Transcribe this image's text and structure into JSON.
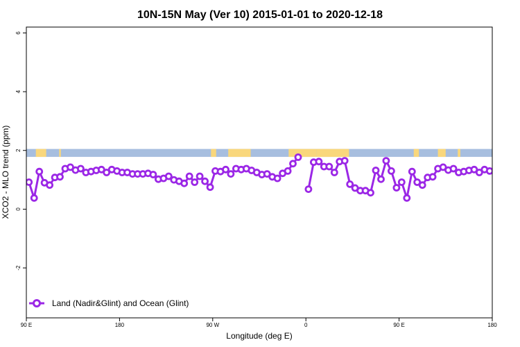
{
  "chart_data": {
    "type": "line",
    "title": "10N-15N May (Ver 10)   2015-01-01 to 2020-12-18",
    "xlabel": "Longitude (deg E)",
    "ylabel": "XCO2 - MLO trend (ppm)",
    "xlim": [
      -90,
      180
    ],
    "ylim": [
      -3.7,
      6.2
    ],
    "x_ticks": [
      {
        "value": -90,
        "label": "90 E"
      },
      {
        "value": -36,
        "label": "180"
      },
      {
        "value": 18,
        "label": "90 W"
      },
      {
        "value": 72,
        "label": "0"
      },
      {
        "value": 126,
        "label": "90 E"
      },
      {
        "value": 180,
        "label": "180"
      }
    ],
    "y_ticks": [
      {
        "value": -2,
        "label": "-2"
      },
      {
        "value": 0,
        "label": "0"
      },
      {
        "value": 2,
        "label": "2"
      },
      {
        "value": 4,
        "label": "4"
      },
      {
        "value": 6,
        "label": "6"
      }
    ],
    "legend": {
      "position": "bottom-left",
      "entries": [
        "Land (Nadir&Glint) and Ocean (Glint)"
      ]
    },
    "land_band": {
      "y_range": [
        1.78,
        2.05
      ],
      "ocean_color": "#a7bedf",
      "land_color": "#f9d77c"
    },
    "land_segments": [
      [
        -84.5,
        -78.5
      ],
      [
        -71,
        -70
      ],
      [
        17,
        20
      ],
      [
        27,
        40
      ],
      [
        62,
        78
      ],
      [
        78,
        97
      ],
      [
        134.5,
        137.5
      ],
      [
        148.5,
        153
      ],
      [
        160,
        161.5
      ]
    ],
    "series": [
      {
        "name": "Land (Nadir&Glint) and Ocean (Glint)",
        "color": "#9b27e6",
        "x": [
          -88.5,
          -85.5,
          -82.5,
          -79.5,
          -76.5,
          -73.5,
          -70.5,
          -67.5,
          -64.5,
          -61.5,
          -58.5,
          -55.5,
          -52.5,
          -49.5,
          -46.5,
          -43.5,
          -40.5,
          -37.5,
          -34.5,
          -31.5,
          -28.5,
          -25.5,
          -22.5,
          -19.5,
          -16.5,
          -13.5,
          -10.5,
          -7.5,
          -4.5,
          -1.5,
          1.5,
          4.5,
          7.5,
          10.5,
          13.5,
          16.5,
          19.5,
          22.5,
          25.5,
          28.5,
          31.5,
          34.5,
          37.5,
          40.5,
          43.5,
          46.5,
          49.5,
          52.5,
          55.5,
          58.5,
          61.5,
          64.5,
          67.5,
          70.5,
          73.5,
          76.5,
          79.5,
          82.5,
          85.5,
          88.5,
          91.5,
          94.5,
          97.5,
          100.5,
          103.5,
          106.5,
          109.5,
          112.5,
          115.5,
          118.5,
          121.5,
          124.5,
          127.5,
          130.5,
          133.5,
          136.5,
          139.5,
          142.5,
          145.5,
          148.5,
          151.5,
          154.5,
          157.5,
          160.5,
          163.5,
          166.5,
          169.5,
          172.5,
          175.5,
          178.5
        ],
        "y": [
          0.92,
          0.38,
          1.28,
          0.9,
          0.82,
          1.08,
          1.1,
          1.38,
          1.43,
          1.33,
          1.38,
          1.25,
          1.28,
          1.32,
          1.35,
          1.25,
          1.35,
          1.3,
          1.25,
          1.25,
          1.2,
          1.2,
          1.2,
          1.22,
          1.18,
          1.02,
          1.05,
          1.12,
          1.0,
          0.95,
          0.88,
          1.12,
          0.92,
          1.12,
          0.95,
          0.75,
          1.3,
          1.28,
          1.35,
          1.2,
          1.38,
          1.35,
          1.38,
          1.32,
          1.25,
          1.18,
          1.2,
          1.1,
          1.05,
          1.22,
          1.3,
          1.55,
          1.77,
          null,
          0.68,
          1.6,
          1.62,
          1.45,
          1.45,
          1.25,
          1.62,
          1.65,
          0.85,
          0.72,
          0.63,
          0.63,
          0.56,
          1.32,
          1.02,
          1.65,
          1.3,
          0.73,
          0.92,
          0.38,
          1.28,
          0.92,
          0.82,
          1.08,
          1.1,
          1.38,
          1.43,
          1.33,
          1.38,
          1.25,
          1.28,
          1.32,
          1.35,
          1.25,
          1.35,
          1.3
        ]
      }
    ]
  }
}
